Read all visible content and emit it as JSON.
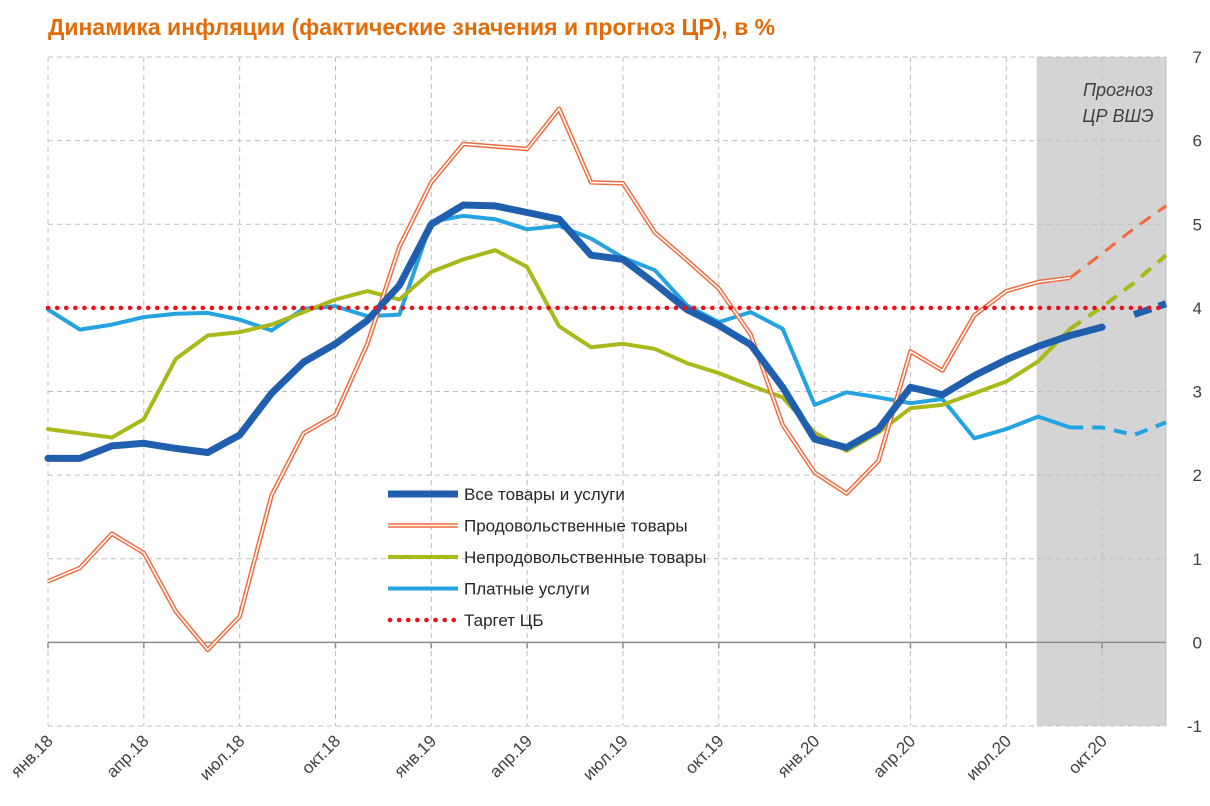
{
  "title": "Динамика инфляции (фактические значения и прогноз ЦР), в %",
  "forecast_label": [
    "Прогноз",
    "ЦР ВШЭ"
  ],
  "chart_data": {
    "type": "line",
    "title": "Динамика инфляции (фактические значения и прогноз ЦР), в %",
    "ylim": [
      -1,
      7
    ],
    "yticks": [
      -1,
      0,
      1,
      2,
      3,
      4,
      5,
      6,
      7
    ],
    "x_tick_labels": [
      "янв.18",
      "апр.18",
      "июл.18",
      "окт.18",
      "янв.19",
      "апр.19",
      "июл.19",
      "окт.19",
      "янв.20",
      "апр.20",
      "июл.20",
      "окт.20"
    ],
    "x_months": [
      "янв.18",
      "фев.18",
      "мар.18",
      "апр.18",
      "май.18",
      "июн.18",
      "июл.18",
      "авг.18",
      "сен.18",
      "окт.18",
      "ноя.18",
      "дек.18",
      "янв.19",
      "фев.19",
      "мар.19",
      "апр.19",
      "май.19",
      "июн.19",
      "июл.19",
      "авг.19",
      "сен.19",
      "окт.19",
      "ноя.19",
      "дек.19",
      "янв.20",
      "фев.20",
      "мар.20",
      "апр.20",
      "май.20",
      "июн.20",
      "июл.20",
      "авг.20",
      "сен.20",
      "окт.20",
      "ноя.20",
      "дек.20"
    ],
    "forecast_start": "сен.20",
    "grid": true,
    "legend_position": "center",
    "series": [
      {
        "name": "Все товары и услуги",
        "color": "#1f5fad",
        "style": "thick",
        "values": [
          2.2,
          2.2,
          2.35,
          2.38,
          2.32,
          2.27,
          2.48,
          2.98,
          3.35,
          3.57,
          3.85,
          4.27,
          5.0,
          5.23,
          5.22,
          5.14,
          5.06,
          4.63,
          4.58,
          4.29,
          3.98,
          3.79,
          3.56,
          3.05,
          2.43,
          2.33,
          2.55,
          3.05,
          2.96,
          3.19,
          3.38,
          3.54,
          3.67,
          3.77,
          null,
          null
        ],
        "forecast": [
          null,
          null,
          null,
          null,
          null,
          null,
          null,
          null,
          null,
          null,
          null,
          null,
          null,
          null,
          null,
          null,
          null,
          null,
          null,
          null,
          null,
          null,
          null,
          null,
          null,
          null,
          null,
          null,
          null,
          null,
          null,
          null,
          null,
          null,
          3.92,
          4.05
        ]
      },
      {
        "name": "Продовольственные товары",
        "color": "#ef6b3d",
        "style": "double",
        "values": [
          0.73,
          0.89,
          1.3,
          1.07,
          0.37,
          -0.09,
          0.31,
          1.76,
          2.5,
          2.72,
          3.57,
          4.73,
          5.5,
          5.96,
          5.93,
          5.9,
          6.38,
          5.5,
          5.49,
          4.9,
          4.57,
          4.23,
          3.68,
          2.6,
          2.03,
          1.78,
          2.17,
          3.48,
          3.25,
          3.91,
          4.2,
          4.31,
          4.36,
          null,
          null,
          null
        ],
        "forecast": [
          null,
          null,
          null,
          null,
          null,
          null,
          null,
          null,
          null,
          null,
          null,
          null,
          null,
          null,
          null,
          null,
          null,
          null,
          null,
          null,
          null,
          null,
          null,
          null,
          null,
          null,
          null,
          null,
          null,
          null,
          null,
          null,
          4.36,
          4.65,
          4.95,
          5.22
        ]
      },
      {
        "name": "Непродовольственные товары",
        "color": "#a9b91a",
        "style": "solid",
        "values": [
          2.55,
          2.5,
          2.45,
          2.67,
          3.39,
          3.67,
          3.71,
          3.8,
          3.95,
          4.1,
          4.2,
          4.1,
          4.43,
          4.58,
          4.69,
          4.49,
          3.78,
          3.53,
          3.57,
          3.51,
          3.34,
          3.22,
          3.07,
          2.93,
          2.51,
          2.29,
          2.51,
          2.8,
          2.84,
          2.98,
          3.12,
          3.36,
          3.75,
          null,
          null,
          null
        ],
        "forecast": [
          null,
          null,
          null,
          null,
          null,
          null,
          null,
          null,
          null,
          null,
          null,
          null,
          null,
          null,
          null,
          null,
          null,
          null,
          null,
          null,
          null,
          null,
          null,
          null,
          null,
          null,
          null,
          null,
          null,
          null,
          null,
          null,
          3.75,
          4.01,
          4.3,
          4.63
        ]
      },
      {
        "name": "Платные услуги",
        "color": "#25a2e0",
        "style": "solid",
        "values": [
          3.98,
          3.74,
          3.8,
          3.89,
          3.93,
          3.94,
          3.86,
          3.73,
          3.99,
          4.02,
          3.9,
          3.92,
          5.03,
          5.1,
          5.06,
          4.94,
          4.98,
          4.83,
          4.6,
          4.45,
          4.03,
          3.83,
          3.95,
          3.75,
          2.84,
          2.99,
          2.93,
          2.86,
          2.91,
          2.44,
          2.55,
          2.7,
          2.57,
          null,
          null,
          null
        ],
        "forecast": [
          null,
          null,
          null,
          null,
          null,
          null,
          null,
          null,
          null,
          null,
          null,
          null,
          null,
          null,
          null,
          null,
          null,
          null,
          null,
          null,
          null,
          null,
          null,
          null,
          null,
          null,
          null,
          null,
          null,
          null,
          null,
          null,
          2.57,
          2.57,
          2.48,
          2.63
        ]
      },
      {
        "name": "Таргет ЦБ",
        "color": "#e8121b",
        "style": "dotted",
        "values": [
          4,
          4,
          4,
          4,
          4,
          4,
          4,
          4,
          4,
          4,
          4,
          4,
          4,
          4,
          4,
          4,
          4,
          4,
          4,
          4,
          4,
          4,
          4,
          4,
          4,
          4,
          4,
          4,
          4,
          4,
          4,
          4,
          4,
          4,
          4,
          4
        ]
      }
    ]
  }
}
